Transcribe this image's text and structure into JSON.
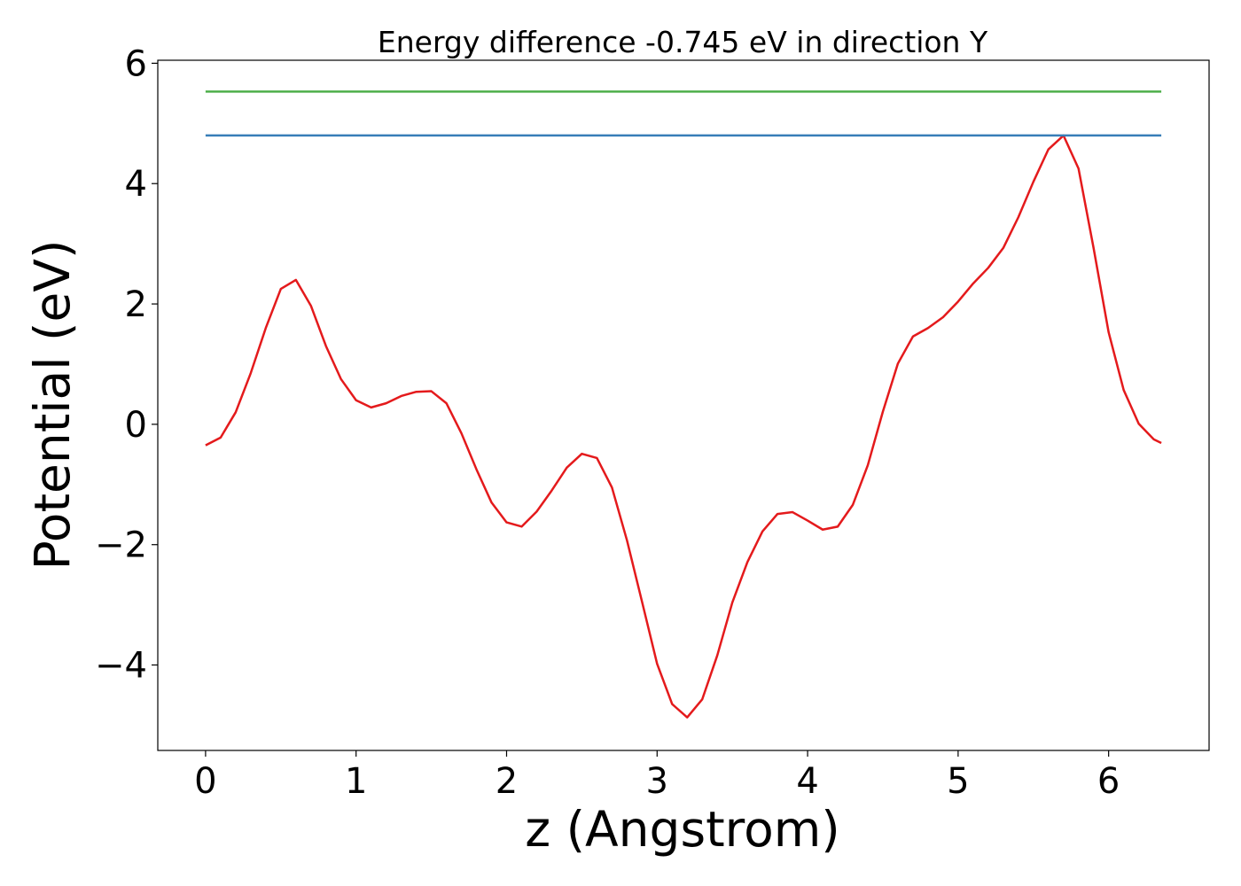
{
  "chart_data": {
    "type": "line",
    "title": "Energy difference -0.745 eV in direction Y",
    "x_label": "z (Angstrom)",
    "y_label": "Potential (eV)",
    "xlim": [
      -0.3175,
      6.6675
    ],
    "ylim": [
      -5.42,
      6.05
    ],
    "xticks": [
      0,
      1,
      2,
      3,
      4,
      5,
      6
    ],
    "yticks": [
      {
        "value": -4,
        "label": "−4"
      },
      {
        "value": -2,
        "label": "−2"
      },
      0,
      2,
      4,
      6
    ],
    "series": [
      {
        "color": "#e41a1c",
        "x": [
          0,
          0.1,
          0.2,
          0.3,
          0.4,
          0.5,
          0.6,
          0.7,
          0.8,
          0.9,
          1.0,
          1.1,
          1.2,
          1.3,
          1.4,
          1.5,
          1.6,
          1.7,
          1.8,
          1.9,
          2.0,
          2.1,
          2.2,
          2.3,
          2.4,
          2.5,
          2.6,
          2.7,
          2.8,
          2.9,
          3.0,
          3.1,
          3.2,
          3.3,
          3.4,
          3.5,
          3.6,
          3.7,
          3.8,
          3.9,
          4.0,
          4.1,
          4.2,
          4.3,
          4.4,
          4.5,
          4.6,
          4.7,
          4.8,
          4.9,
          5.0,
          5.1,
          5.2,
          5.3,
          5.4,
          5.5,
          5.6,
          5.7,
          5.8,
          5.9,
          6.0,
          6.1,
          6.2,
          6.3,
          6.35
        ],
        "values": [
          -0.35,
          -0.22,
          0.2,
          0.85,
          1.6,
          2.25,
          2.4,
          1.97,
          1.3,
          0.75,
          0.4,
          0.28,
          0.35,
          0.47,
          0.54,
          0.55,
          0.35,
          -0.15,
          -0.75,
          -1.3,
          -1.63,
          -1.7,
          -1.45,
          -1.1,
          -0.72,
          -0.49,
          -0.56,
          -1.05,
          -1.93,
          -2.95,
          -3.98,
          -4.65,
          -4.87,
          -4.57,
          -3.84,
          -2.96,
          -2.29,
          -1.78,
          -1.49,
          -1.46,
          -1.6,
          -1.75,
          -1.7,
          -1.34,
          -0.68,
          0.21,
          1.01,
          1.46,
          1.6,
          1.78,
          2.04,
          2.34,
          2.6,
          2.93,
          3.44,
          4.03,
          4.57,
          4.8,
          4.25,
          2.93,
          1.53,
          0.57,
          0.01,
          -0.25,
          -0.31
        ]
      },
      {
        "color": "#4daf4a",
        "x": [
          0,
          6.35
        ],
        "values": [
          5.53,
          5.53
        ]
      },
      {
        "color": "#377eb8",
        "x": [
          0,
          6.35
        ],
        "values": [
          4.8,
          4.8
        ]
      }
    ]
  }
}
